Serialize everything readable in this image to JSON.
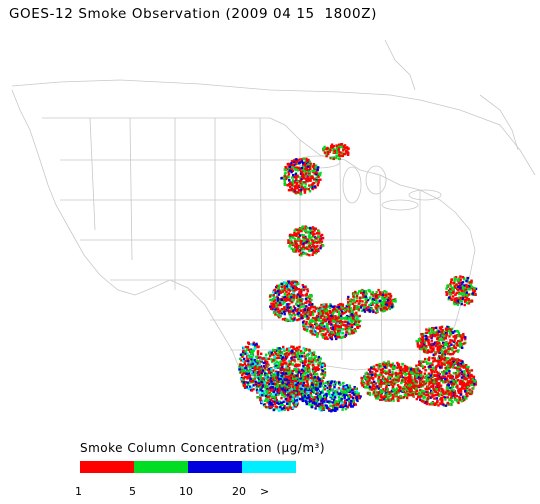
{
  "title": "GOES-12 Smoke Observation (2009 04 15  1800Z)",
  "legend": {
    "title": "Smoke Column Concentration (μg/m³)",
    "bins": [
      {
        "color": "#ff0000"
      },
      {
        "color": "#00dd22"
      },
      {
        "color": "#0000dd"
      },
      {
        "color": "#00eeff"
      }
    ],
    "ticks": [
      "1",
      "5",
      "10",
      "20",
      ">"
    ]
  },
  "map": {
    "background": "#ffffff",
    "boundary_color": "#c8c8c8"
  }
}
